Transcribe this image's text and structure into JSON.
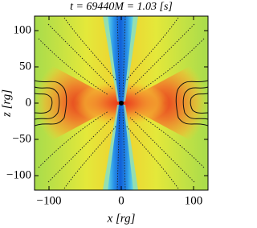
{
  "chart_data": {
    "type": "heatmap",
    "title": "t = 69440M = 1.03 [s]",
    "xlabel": "x [rg]",
    "ylabel": "z [rg]",
    "xlim": [
      -120,
      120
    ],
    "ylim": [
      -120,
      120
    ],
    "xticks": [
      {
        "value": -100,
        "label": "−100"
      },
      0,
      100
    ],
    "yticks": [
      {
        "value": -100,
        "label": "−100"
      },
      {
        "value": -50,
        "label": "−50"
      },
      0,
      50,
      100
    ]
  }
}
